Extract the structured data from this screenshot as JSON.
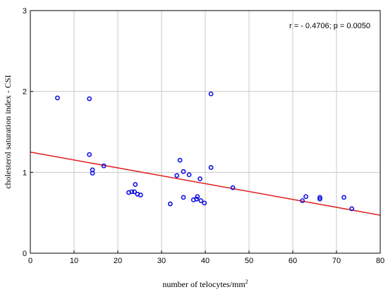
{
  "chart_data": {
    "type": "scatter",
    "xlabel": "number of telocytes/mm",
    "xlabel_sup": "2",
    "ylabel": "cholesterol saturation index - CSI",
    "annotation": "r = - 0.4706; p = 0.0050",
    "xlim": [
      0,
      80
    ],
    "ylim": [
      0,
      3
    ],
    "xticks": [
      "0",
      "10",
      "20",
      "30",
      "40",
      "50",
      "60",
      "70",
      "80"
    ],
    "yticks": [
      "0",
      "1",
      "2",
      "3"
    ],
    "grid": true,
    "colors": {
      "points": "#1010e0",
      "fit": "#e02020",
      "grid": "#c8c8c8"
    },
    "regression": {
      "x": [
        0,
        80
      ],
      "y": [
        1.25,
        0.47
      ]
    },
    "points": [
      {
        "x": 6.2,
        "y": 1.92
      },
      {
        "x": 13.5,
        "y": 1.91
      },
      {
        "x": 13.5,
        "y": 1.22
      },
      {
        "x": 14.2,
        "y": 1.03
      },
      {
        "x": 14.2,
        "y": 0.99
      },
      {
        "x": 16.8,
        "y": 1.08
      },
      {
        "x": 22.5,
        "y": 0.75
      },
      {
        "x": 23.2,
        "y": 0.76
      },
      {
        "x": 23.8,
        "y": 0.76
      },
      {
        "x": 24.0,
        "y": 0.85
      },
      {
        "x": 24.5,
        "y": 0.73
      },
      {
        "x": 25.2,
        "y": 0.72
      },
      {
        "x": 32.0,
        "y": 0.61
      },
      {
        "x": 33.5,
        "y": 0.96
      },
      {
        "x": 34.2,
        "y": 1.15
      },
      {
        "x": 35.0,
        "y": 1.01
      },
      {
        "x": 35.0,
        "y": 0.69
      },
      {
        "x": 36.3,
        "y": 0.97
      },
      {
        "x": 37.3,
        "y": 0.66
      },
      {
        "x": 38.0,
        "y": 0.67
      },
      {
        "x": 38.2,
        "y": 0.7
      },
      {
        "x": 38.8,
        "y": 0.92
      },
      {
        "x": 39.0,
        "y": 0.65
      },
      {
        "x": 39.8,
        "y": 0.62
      },
      {
        "x": 41.3,
        "y": 1.97
      },
      {
        "x": 41.3,
        "y": 1.06
      },
      {
        "x": 46.3,
        "y": 0.81
      },
      {
        "x": 62.2,
        "y": 0.65
      },
      {
        "x": 63.0,
        "y": 0.7
      },
      {
        "x": 66.2,
        "y": 0.69
      },
      {
        "x": 66.2,
        "y": 0.67
      },
      {
        "x": 71.7,
        "y": 0.69
      },
      {
        "x": 73.5,
        "y": 0.55
      }
    ]
  }
}
